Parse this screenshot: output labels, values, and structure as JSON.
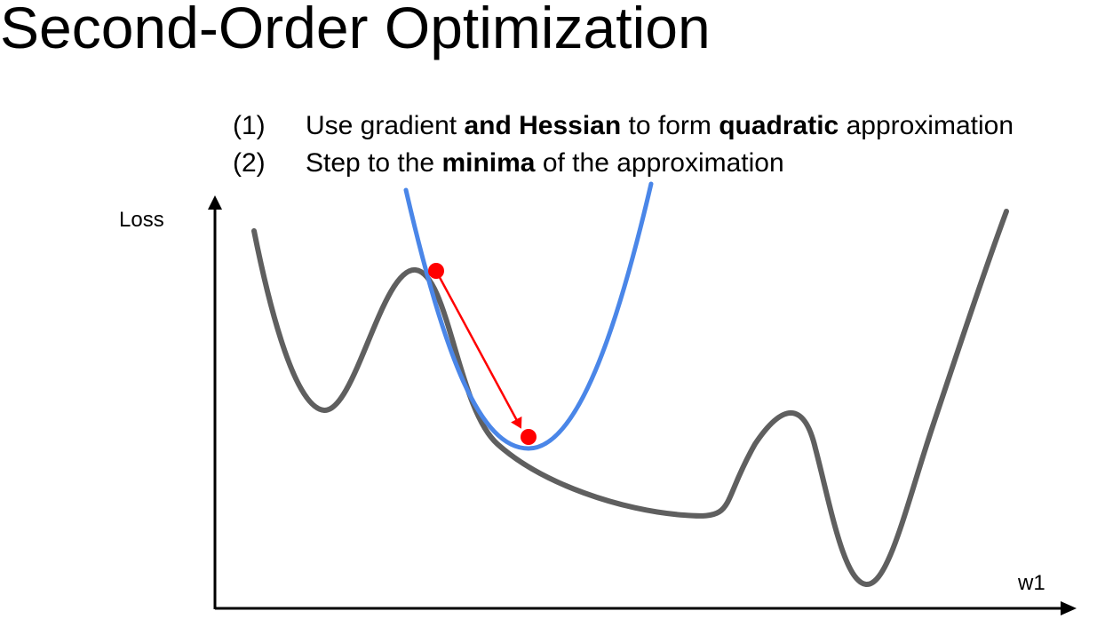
{
  "title": "Second-Order Optimization",
  "steps": [
    {
      "number": "(1)",
      "parts": [
        "Use gradient ",
        "and Hessian",
        " to form ",
        "quadratic",
        " approximation"
      ]
    },
    {
      "number": "(2)",
      "parts": [
        "Step to the ",
        "minima",
        " of the approximation"
      ]
    }
  ],
  "axes": {
    "y_label": "Loss",
    "x_label": "w1"
  },
  "colors": {
    "loss_curve": "#5f5f5f",
    "quadratic_approx": "#4a86e8",
    "step": "#ff0000",
    "axis": "#000000"
  }
}
